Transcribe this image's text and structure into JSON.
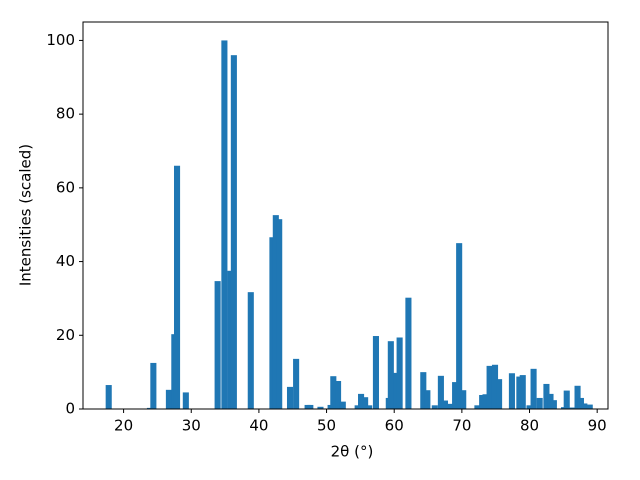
{
  "chart_data": {
    "type": "bar",
    "xlabel": "2θ (°)",
    "ylabel": "Intensities (scaled)",
    "color": "#1f77b4",
    "x": [
      17.8,
      23.9,
      24.4,
      26.7,
      27.5,
      27.9,
      29.2,
      33.9,
      34.9,
      35.8,
      36.3,
      38.8,
      42.0,
      42.5,
      43.0,
      44.6,
      45.5,
      47.2,
      47.6,
      49.1,
      50.6,
      51.0,
      51.7,
      52.4,
      54.6,
      55.1,
      55.7,
      56.3,
      57.3,
      59.2,
      59.5,
      60.3,
      60.8,
      62.1,
      64.3,
      64.9,
      66.0,
      66.9,
      67.5,
      68.4,
      69.0,
      69.6,
      70.2,
      72.3,
      73.0,
      73.5,
      74.1,
      74.9,
      75.5,
      77.4,
      78.5,
      79.0,
      80.0,
      80.6,
      81.5,
      82.5,
      83.1,
      83.6,
      85.1,
      85.5,
      86.3,
      87.1,
      87.6,
      88.1,
      88.9
    ],
    "values": [
      6.5,
      0.3,
      12.5,
      5.2,
      20.3,
      66,
      4.5,
      34.7,
      100,
      37.5,
      96,
      31.7,
      46.6,
      52.6,
      51.5,
      6,
      13.6,
      1.1,
      1.1,
      0.6,
      1.1,
      8.9,
      7.6,
      2,
      1,
      4.1,
      3.2,
      1,
      19.8,
      3,
      18.4,
      9.8,
      19.4,
      30.2,
      10,
      5.1,
      1,
      9,
      2.3,
      1.4,
      7.3,
      45,
      5.1,
      1,
      3.8,
      4,
      11.7,
      12,
      8.1,
      9.7,
      8.8,
      9.2,
      1,
      10.9,
      3,
      6.8,
      4.1,
      2.4,
      0.5,
      5,
      0.4,
      6.3,
      3,
      1.5,
      1.2
    ],
    "xlim": [
      14,
      91.6
    ],
    "ylim": [
      0,
      105
    ],
    "xticks": [
      20,
      30,
      40,
      50,
      60,
      70,
      80,
      90
    ],
    "yticks": [
      0,
      20,
      40,
      60,
      80,
      100
    ],
    "grid": false
  }
}
